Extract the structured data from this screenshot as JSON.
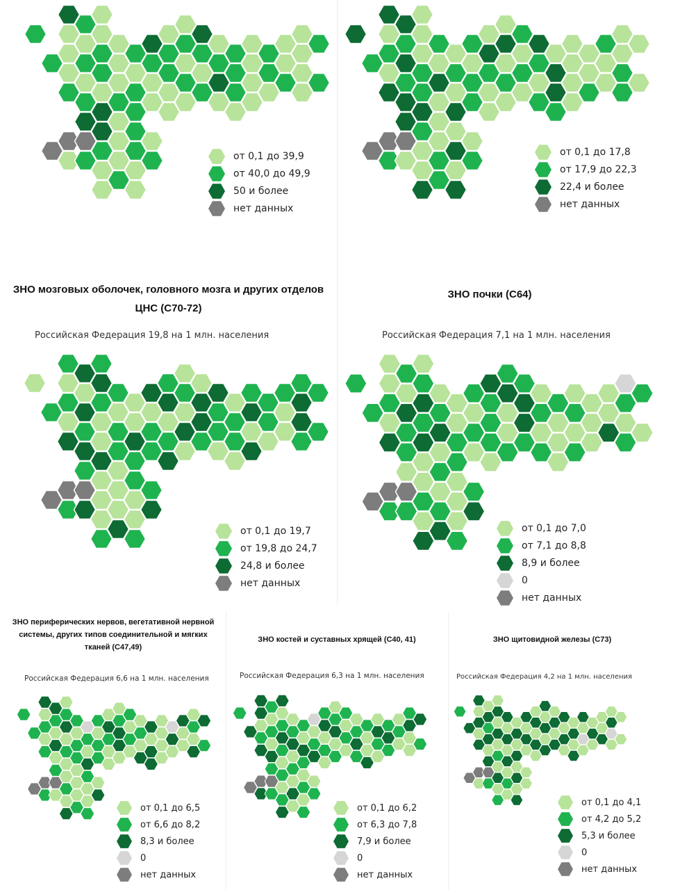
{
  "colors": {
    "1": "#b8e39a",
    "2": "#1fb34f",
    "3": "#0d6b33",
    "0": "#d6d6d6",
    "n": "#7d7d7d"
  },
  "chart_data": [
    {
      "type": "heatmap",
      "title": "",
      "subtitle": "",
      "legend": [
        {
          "cat": "1",
          "label": "от 0,1 до 39,9"
        },
        {
          "cat": "2",
          "label": "от 40,0 до 49,9"
        },
        {
          "cat": "3",
          "label": "50 и более"
        },
        {
          "cat": "n",
          "label": "нет данных"
        }
      ],
      "cells": [
        "2",
        "2n",
        "31112n1",
        "212123n2",
        "1122133211",
        "11121112",
        "21222211",
        "321112",
        "12211",
        "12121",
        "3212",
        "1231",
        "2221",
        "1111",
        "221",
        "112",
        "1111",
        "22"
      ]
    },
    {
      "type": "heatmap",
      "title": "",
      "subtitle": "",
      "legend": [
        {
          "cat": "1",
          "label": "от 0,1 до 17,8"
        },
        {
          "cat": "2",
          "label": "от 17,9 до 22,3"
        },
        {
          "cat": "3",
          "label": "22,4 и более"
        },
        {
          "cat": "n",
          "label": "нет данных"
        }
      ],
      "cells": [
        "3",
        "2n",
        "31213n2",
        "323233n1",
        "1112232113",
        "21311122",
        "12131313",
        "212212",
        "13211",
        "13121",
        "2121",
        "3212",
        "1332",
        "1111",
        "112",
        "211",
        "1122",
        "11"
      ]
    },
    {
      "type": "heatmap",
      "title": "ЗНО мозговых оболочек, головного мозга и других отделов ЦНС (С70-72)",
      "subtitle": "Российская Федерация 19,8 на 1 млн. населения",
      "legend": [
        {
          "cat": "1",
          "label": "от 0,1 до 19,7"
        },
        {
          "cat": "2",
          "label": "от 19,8 до 24,7"
        },
        {
          "cat": "3",
          "label": "24,8 и более"
        },
        {
          "cat": "n",
          "label": "нет данных"
        }
      ],
      "cells": [
        "1",
        "2n",
        "21213n2",
        "313232n3",
        "2321131112",
        "21221113",
        "11322112",
        "312223",
        "23123",
        "12131",
        "1332",
        "3221",
        "1221",
        "2313",
        "221",
        "211",
        "2332",
        "22"
      ]
    },
    {
      "type": "heatmap",
      "title": "ЗНО почки (С64)",
      "subtitle": "Российская Федерация 7,1 на 1 млн. населения",
      "legend": [
        {
          "cat": "1",
          "label": "от 0,1 до 7,0"
        },
        {
          "cat": "2",
          "label": "от 7,1 до 8,8"
        },
        {
          "cat": "3",
          "label": "8,9 и более"
        },
        {
          "cat": "0",
          "label": "0"
        },
        {
          "cat": "n",
          "label": "нет данных"
        }
      ],
      "cells": [
        "2",
        "2n",
        "11213n2",
        "213221n2",
        "1232311213",
        "12312123",
        "11221112",
        "212123",
        "32221",
        "23112",
        "2332",
        "1212",
        "2111",
        "1212",
        "111",
        "113",
        "0212",
        "21"
      ]
    },
    {
      "type": "heatmap",
      "title": "ЗНО периферических нервов, вегетативной нервной системы, других типов соединительной и мягких тканей (С47,49)",
      "subtitle": "Российская Федерация 6,6 на 1 млн. населения",
      "legend": [
        {
          "cat": "1",
          "label": "от 0,1 до 6,5"
        },
        {
          "cat": "2",
          "label": "от 6,6 до 8,2"
        },
        {
          "cat": "3",
          "label": "8,3 и более"
        },
        {
          "cat": "0",
          "label": "0"
        },
        {
          "cat": "n",
          "label": "нет данных"
        }
      ],
      "cells": [
        "2",
        "2n",
        "31212n2",
        "321312n1",
        "1231211213",
        "21221112",
        "02132112",
        "212213",
        "13211",
        "12331",
        "2121",
        "1213",
        "3133",
        "1111",
        "031",
        "311",
        "1213",
        "32"
      ]
    },
    {
      "type": "heatmap",
      "title": "ЗНО костей и суставных хрящей (С40, 41)",
      "subtitle": "Российская Федерация 6,3 на 1 млн. населения",
      "legend": [
        {
          "cat": "1",
          "label": "от 0,1 до 6,2"
        },
        {
          "cat": "2",
          "label": "от 6,3 до 7,8"
        },
        {
          "cat": "3",
          "label": "7,9 и более"
        },
        {
          "cat": "0",
          "label": "0"
        },
        {
          "cat": "n",
          "label": "нет данных"
        }
      ],
      "cells": [
        "2",
        "3n",
        "33123n3",
        "212132n2",
        "3123212123",
        "12312131",
        "21321212",
        "012312",
        "23121",
        "12312",
        "2121",
        "1232",
        "2113",
        "1321",
        "232",
        "121",
        "2311",
        "32"
      ]
    },
    {
      "type": "heatmap",
      "title": "ЗНО щитовидной железы (С73)",
      "subtitle": "Российская Федерация 4,2 на 1 млн. населения",
      "legend": [
        {
          "cat": "1",
          "label": "от 0,1 до 4,1"
        },
        {
          "cat": "2",
          "label": "от 4,2 до 5,2"
        },
        {
          "cat": "3",
          "label": "5,3 и более"
        },
        {
          "cat": "0",
          "label": "0"
        },
        {
          "cat": "n",
          "label": "нет данных"
        }
      ],
      "cells": [
        "2",
        "3n",
        "31313n1",
        "132313n2",
        "1313121312",
        "31313121",
        "13131313",
        "313111",
        "13131",
        "31313",
        "1313",
        "3131",
        "1313",
        "3101",
        "131",
        "113",
        "1301",
        "11"
      ]
    }
  ]
}
